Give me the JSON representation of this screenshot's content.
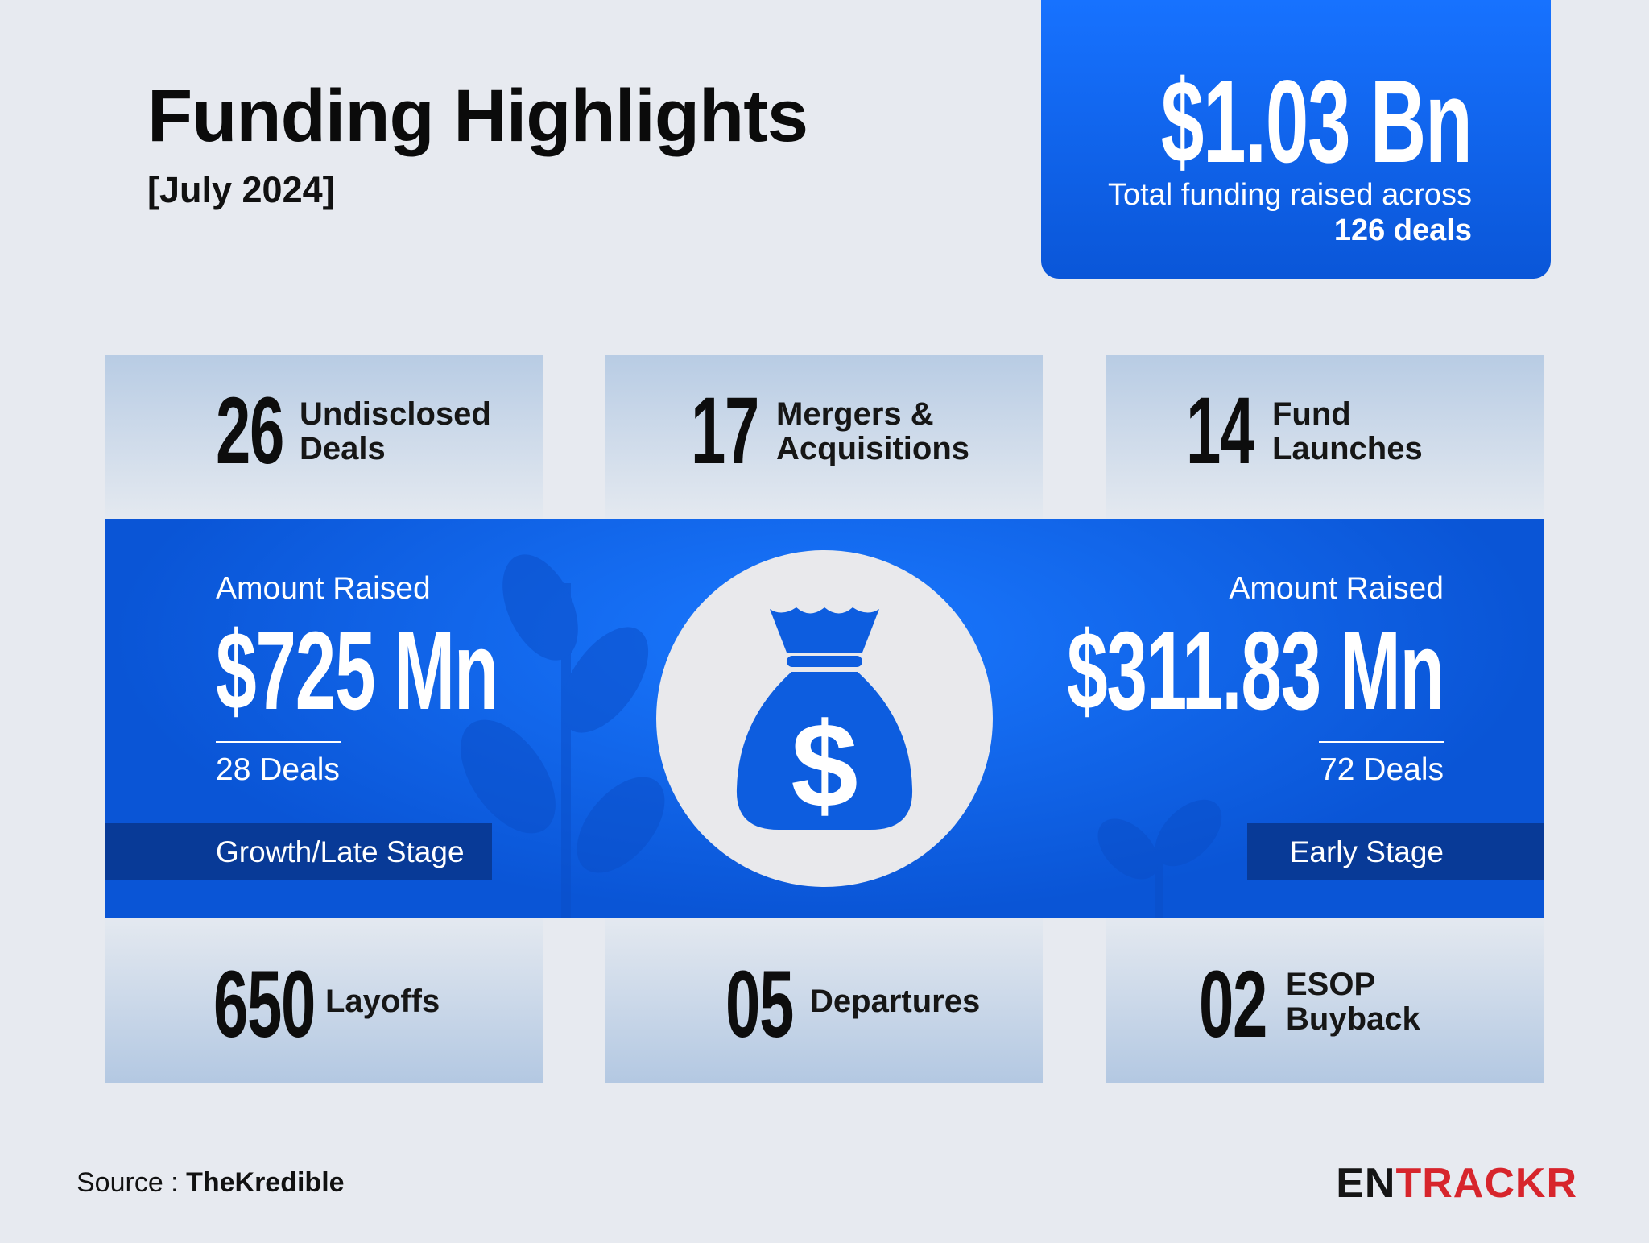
{
  "header": {
    "title": "Funding Highlights",
    "period": "[July 2024]"
  },
  "total": {
    "amount": "$1.03 Bn",
    "caption": "Total funding raised across",
    "deals": "126 deals"
  },
  "top_stats": [
    {
      "number": "26",
      "lines": [
        "Undisclosed",
        "Deals"
      ]
    },
    {
      "number": "17",
      "lines": [
        "Mergers &",
        "Acquisitions"
      ]
    },
    {
      "number": "14",
      "lines": [
        "Fund",
        "Launches"
      ]
    }
  ],
  "stages": [
    {
      "heading": "Amount Raised",
      "amount": "$725 Mn",
      "deals": "28 Deals",
      "stage": "Growth/Late Stage"
    },
    {
      "heading": "Amount Raised",
      "amount": "$311.83 Mn",
      "deals": "72 Deals",
      "stage": "Early Stage"
    }
  ],
  "bottom_stats": [
    {
      "number": "650",
      "lines": [
        "Layoffs"
      ]
    },
    {
      "number": "05",
      "lines": [
        "Departures"
      ]
    },
    {
      "number": "02",
      "lines": [
        "ESOP",
        "Buyback"
      ]
    }
  ],
  "footer": {
    "source_label": "Source :",
    "source": "TheKredible",
    "brand_dark": "EN",
    "brand_red": "TRACKR"
  }
}
